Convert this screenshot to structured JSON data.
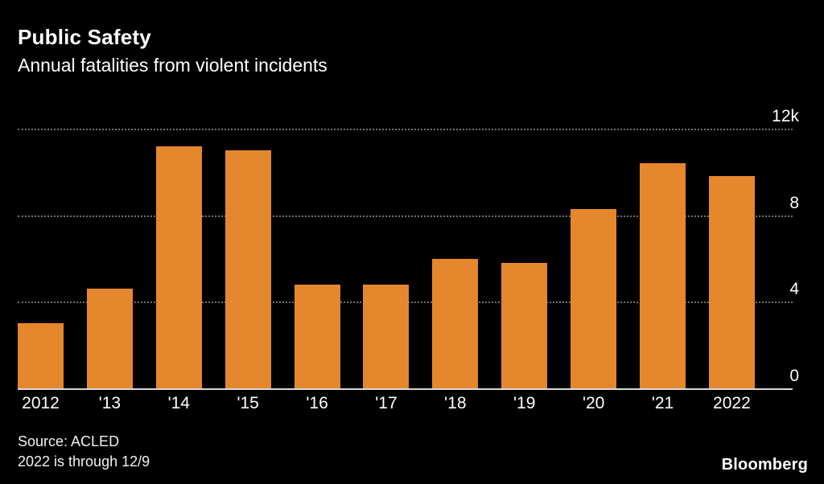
{
  "header": {
    "title": "Public Safety",
    "subtitle": "Annual fatalities from violent incidents"
  },
  "chart_data": {
    "type": "bar",
    "title": "Public Safety",
    "subtitle": "Annual fatalities from violent incidents",
    "categories": [
      "2012",
      "'13",
      "'14",
      "'15",
      "'16",
      "'17",
      "'18",
      "'19",
      "'20",
      "'21",
      "2022"
    ],
    "values": [
      3000,
      4600,
      11200,
      11000,
      4800,
      4800,
      6000,
      5800,
      8300,
      10400,
      9800
    ],
    "xlabel": "",
    "ylabel": "",
    "ylim": [
      0,
      12000
    ],
    "yticks": [
      {
        "value": 12000,
        "label": "12k"
      },
      {
        "value": 8000,
        "label": "8"
      },
      {
        "value": 4000,
        "label": "4"
      },
      {
        "value": 0,
        "label": "0"
      }
    ],
    "grid": "horizontal-dotted",
    "legend": "none",
    "bar_color": "#E5872D"
  },
  "footer": {
    "source": "Source: ACLED",
    "note": "2022 is through 12/9",
    "logo": "Bloomberg"
  },
  "colors": {
    "background": "#000000",
    "bar": "#E5872D",
    "grid": "#6f6f6f",
    "axis": "#d9d9d9",
    "text": "#ffffff"
  }
}
